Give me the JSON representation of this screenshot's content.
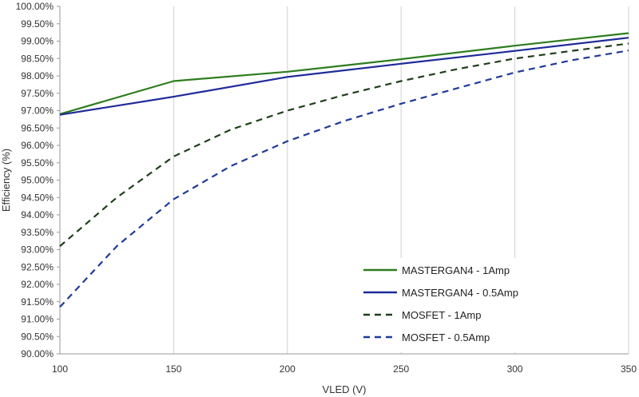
{
  "chart_data": {
    "type": "line",
    "title": "",
    "xlabel": "VLED (V)",
    "ylabel": "Efficiency (%)",
    "xlim": [
      100,
      350
    ],
    "ylim": [
      90.0,
      100.0
    ],
    "x_ticks": [
      "100",
      "150",
      "200",
      "250",
      "300",
      "350"
    ],
    "y_ticks": [
      "90.00%",
      "90.50%",
      "91.00%",
      "91.50%",
      "92.00%",
      "92.50%",
      "93.00%",
      "93.50%",
      "94.00%",
      "94.50%",
      "95.00%",
      "95.50%",
      "96.00%",
      "96.50%",
      "97.00%",
      "97.50%",
      "98.00%",
      "98.50%",
      "99.00%",
      "99.50%",
      "100.00%"
    ],
    "grid": "vertical",
    "legend_position": "bottom-right",
    "series": [
      {
        "name": "MASTERGAN4 - 1Amp",
        "color": "#2e7d1f",
        "dash": "solid",
        "x": [
          100,
          150,
          200,
          250,
          300,
          350
        ],
        "y": [
          96.9,
          97.85,
          98.12,
          98.48,
          98.87,
          99.23
        ]
      },
      {
        "name": "MASTERGAN4 - 0.5Amp",
        "color": "#1f2a99",
        "dash": "solid",
        "x": [
          100,
          150,
          200,
          250,
          300,
          350
        ],
        "y": [
          96.88,
          97.4,
          97.97,
          98.35,
          98.72,
          99.1
        ]
      },
      {
        "name": "MOSFET - 1Amp",
        "color": "#1f3f1a",
        "dash": "dashed",
        "x": [
          100,
          125,
          150,
          175,
          200,
          225,
          250,
          275,
          300,
          325,
          350
        ],
        "y": [
          93.1,
          94.5,
          95.68,
          96.45,
          97.0,
          97.45,
          97.85,
          98.2,
          98.5,
          98.72,
          98.93
        ]
      },
      {
        "name": "MOSFET - 0.5Amp",
        "color": "#1f3a99",
        "dash": "dashed",
        "x": [
          100,
          125,
          150,
          175,
          200,
          225,
          250,
          275,
          300,
          325,
          350
        ],
        "y": [
          91.35,
          93.1,
          94.45,
          95.4,
          96.12,
          96.7,
          97.2,
          97.65,
          98.1,
          98.45,
          98.73
        ]
      }
    ]
  }
}
